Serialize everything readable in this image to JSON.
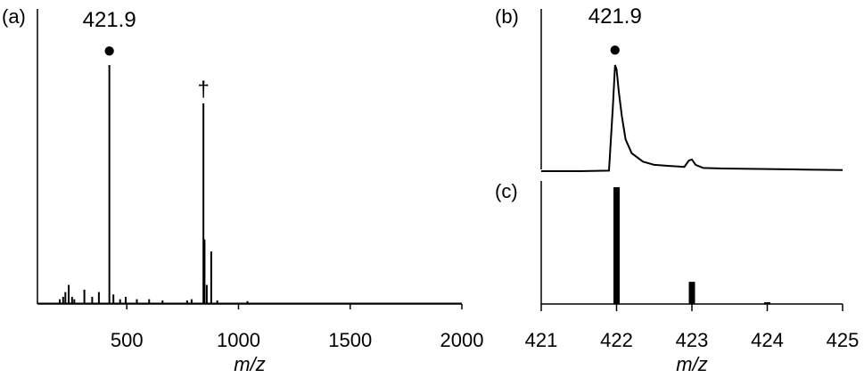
{
  "chart_data": [
    {
      "id": "a",
      "type": "line",
      "panel_label": "(a)",
      "xlabel": "m/z",
      "ylabel": "",
      "xlim": [
        100,
        2000
      ],
      "ylim": [
        0,
        100
      ],
      "x_ticks": [
        500,
        1000,
        1500,
        2000
      ],
      "x_tick_labels": [
        "500",
        "1000",
        "1500",
        "2000"
      ],
      "grid": false,
      "series": [
        {
          "peaks": [
            {
              "x": 200,
              "y": 2
            },
            {
              "x": 215,
              "y": 3
            },
            {
              "x": 225,
              "y": 5
            },
            {
              "x": 240,
              "y": 8
            },
            {
              "x": 255,
              "y": 3
            },
            {
              "x": 265,
              "y": 2
            },
            {
              "x": 310,
              "y": 6
            },
            {
              "x": 345,
              "y": 3
            },
            {
              "x": 375,
              "y": 5
            },
            {
              "x": 421.9,
              "y": 100
            },
            {
              "x": 440,
              "y": 4
            },
            {
              "x": 470,
              "y": 2
            },
            {
              "x": 495,
              "y": 3
            },
            {
              "x": 545,
              "y": 2
            },
            {
              "x": 600,
              "y": 2
            },
            {
              "x": 660,
              "y": 1.5
            },
            {
              "x": 770,
              "y": 1.5
            },
            {
              "x": 790,
              "y": 2
            },
            {
              "x": 843,
              "y": 84
            },
            {
              "x": 848,
              "y": 27
            },
            {
              "x": 858,
              "y": 8
            },
            {
              "x": 878,
              "y": 22
            },
            {
              "x": 905,
              "y": 1.5
            },
            {
              "x": 1040,
              "y": 1.2
            }
          ]
        }
      ],
      "annotations": [
        {
          "text": "421.9",
          "marker": "●",
          "x": 421.9
        },
        {
          "text": "†",
          "x": 843
        }
      ]
    },
    {
      "id": "b",
      "type": "line",
      "panel_label": "(b)",
      "xlim": [
        421,
        425
      ],
      "ylim": [
        0,
        100
      ],
      "series": [
        {
          "x": [
            421.0,
            421.5,
            421.9,
            421.95,
            421.98,
            422.0,
            422.03,
            422.07,
            422.12,
            422.2,
            422.35,
            422.5,
            422.7,
            422.9,
            422.96,
            423.0,
            423.05,
            423.15,
            423.4,
            424.0,
            424.5,
            425.0
          ],
          "y": [
            0,
            0,
            0.5,
            60,
            100,
            96,
            75,
            52,
            30,
            17,
            9,
            6,
            5,
            4,
            10,
            11,
            6,
            3,
            2.5,
            2,
            1.5,
            1
          ]
        }
      ],
      "annotations": [
        {
          "text": "421.9",
          "marker": "●",
          "x": 421.98
        }
      ]
    },
    {
      "id": "c",
      "type": "bar",
      "panel_label": "(c)",
      "xlabel": "m/z",
      "xlim": [
        421,
        425
      ],
      "ylim": [
        0,
        100
      ],
      "x_ticks": [
        421,
        422,
        423,
        424,
        425
      ],
      "x_tick_labels": [
        "421",
        "422",
        "423",
        "424",
        "425"
      ],
      "grid": false,
      "series": [
        {
          "x": [
            422.0,
            423.0,
            424.0
          ],
          "values": [
            100,
            19,
            1.5
          ]
        }
      ]
    }
  ]
}
